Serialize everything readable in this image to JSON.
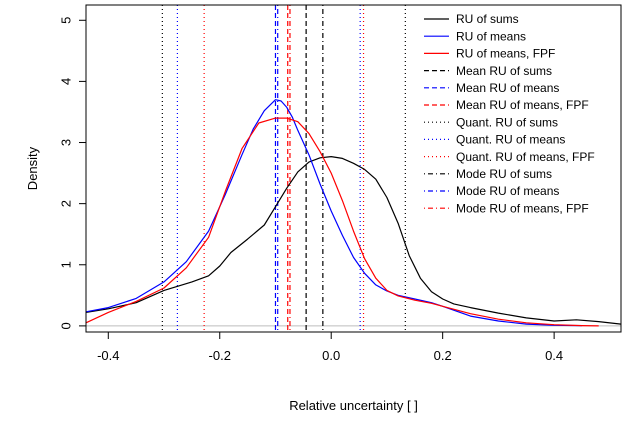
{
  "chart_data": {
    "type": "line",
    "title": "",
    "xlabel": "Relative uncertainty [ ]",
    "ylabel": "Density",
    "xlim": [
      -0.44,
      0.52
    ],
    "ylim": [
      -0.1,
      5.25
    ],
    "xticks": [
      "-0.4",
      "-0.2",
      "0.0",
      "0.2",
      "0.4"
    ],
    "xtick_values": [
      -0.4,
      -0.2,
      0.0,
      0.2,
      0.4
    ],
    "yticks": [
      "0",
      "1",
      "2",
      "3",
      "4",
      "5"
    ],
    "ytick_values": [
      0,
      1,
      2,
      3,
      4,
      5
    ],
    "grid": false,
    "legend_position": "top-right",
    "series": [
      {
        "name": "RU of sums",
        "color": "#000000",
        "x": [
          -0.44,
          -0.4,
          -0.35,
          -0.3,
          -0.25,
          -0.22,
          -0.2,
          -0.18,
          -0.15,
          -0.12,
          -0.1,
          -0.08,
          -0.06,
          -0.04,
          -0.02,
          0.0,
          0.02,
          0.04,
          0.06,
          0.08,
          0.1,
          0.12,
          0.14,
          0.16,
          0.18,
          0.2,
          0.22,
          0.25,
          0.3,
          0.35,
          0.4,
          0.44,
          0.48,
          0.52
        ],
        "y": [
          0.22,
          0.28,
          0.38,
          0.58,
          0.72,
          0.82,
          0.98,
          1.2,
          1.42,
          1.65,
          1.95,
          2.25,
          2.52,
          2.68,
          2.75,
          2.77,
          2.74,
          2.66,
          2.56,
          2.4,
          2.1,
          1.68,
          1.15,
          0.78,
          0.56,
          0.44,
          0.36,
          0.3,
          0.21,
          0.13,
          0.08,
          0.1,
          0.07,
          0.03
        ]
      },
      {
        "name": "RU of means",
        "color": "#0000ff",
        "x": [
          -0.44,
          -0.4,
          -0.35,
          -0.3,
          -0.26,
          -0.22,
          -0.19,
          -0.16,
          -0.14,
          -0.12,
          -0.1,
          -0.09,
          -0.08,
          -0.07,
          -0.06,
          -0.04,
          -0.02,
          0.0,
          0.02,
          0.04,
          0.06,
          0.08,
          0.1,
          0.12,
          0.15,
          0.18,
          0.2,
          0.25,
          0.3,
          0.35,
          0.4,
          0.45
        ],
        "y": [
          0.23,
          0.3,
          0.45,
          0.72,
          1.05,
          1.55,
          2.15,
          2.8,
          3.22,
          3.52,
          3.7,
          3.68,
          3.58,
          3.42,
          3.2,
          2.8,
          2.32,
          1.88,
          1.48,
          1.12,
          0.86,
          0.67,
          0.57,
          0.5,
          0.44,
          0.38,
          0.32,
          0.16,
          0.08,
          0.03,
          0.01,
          0.005
        ]
      },
      {
        "name": "RU of means, FPF",
        "color": "#ff0000",
        "x": [
          -0.44,
          -0.4,
          -0.35,
          -0.3,
          -0.26,
          -0.22,
          -0.19,
          -0.16,
          -0.13,
          -0.1,
          -0.08,
          -0.06,
          -0.04,
          -0.02,
          0.0,
          0.02,
          0.04,
          0.06,
          0.08,
          0.1,
          0.12,
          0.15,
          0.18,
          0.2,
          0.25,
          0.3,
          0.35,
          0.4,
          0.45,
          0.48
        ],
        "y": [
          0.05,
          0.22,
          0.4,
          0.62,
          0.95,
          1.45,
          2.2,
          2.9,
          3.32,
          3.4,
          3.4,
          3.34,
          3.15,
          2.85,
          2.5,
          2.05,
          1.55,
          1.1,
          0.78,
          0.58,
          0.49,
          0.42,
          0.37,
          0.32,
          0.2,
          0.11,
          0.05,
          0.02,
          0.005,
          0.0
        ]
      }
    ],
    "vertical_lines": [
      {
        "name": "Mean RU of sums",
        "x": -0.045,
        "color": "#000000",
        "style": "dashed"
      },
      {
        "name": "Mean RU of means",
        "x": -0.1,
        "color": "#0000ff",
        "style": "dashed"
      },
      {
        "name": "Mean RU of means, FPF",
        "x": -0.078,
        "color": "#ff0000",
        "style": "dashed"
      },
      {
        "name": "Quant. RU of sums",
        "x": -0.303,
        "color": "#000000",
        "style": "dotted"
      },
      {
        "name": "Quant. RU of sums",
        "x": 0.133,
        "color": "#000000",
        "style": "dotted"
      },
      {
        "name": "Quant. RU of means",
        "x": -0.276,
        "color": "#0000ff",
        "style": "dotted"
      },
      {
        "name": "Quant. RU of means",
        "x": 0.052,
        "color": "#0000ff",
        "style": "dotted"
      },
      {
        "name": "Quant. RU of means, FPF",
        "x": -0.228,
        "color": "#ff0000",
        "style": "dotted"
      },
      {
        "name": "Quant. RU of means, FPF",
        "x": 0.058,
        "color": "#ff0000",
        "style": "dotted"
      },
      {
        "name": "Mode RU of sums",
        "x": -0.015,
        "color": "#000000",
        "style": "dotdash"
      },
      {
        "name": "Mode RU of means",
        "x": -0.096,
        "color": "#0000ff",
        "style": "dotdash"
      },
      {
        "name": "Mode RU of means, FPF",
        "x": -0.074,
        "color": "#ff0000",
        "style": "dotdash"
      }
    ],
    "legend": [
      {
        "label": "RU of sums",
        "color": "#000000",
        "style": "solid"
      },
      {
        "label": "RU of means",
        "color": "#0000ff",
        "style": "solid"
      },
      {
        "label": "RU of means, FPF",
        "color": "#ff0000",
        "style": "solid"
      },
      {
        "label": "Mean RU of sums",
        "color": "#000000",
        "style": "dashed"
      },
      {
        "label": "Mean RU of means",
        "color": "#0000ff",
        "style": "dashed"
      },
      {
        "label": "Mean RU of means, FPF",
        "color": "#ff0000",
        "style": "dashed"
      },
      {
        "label": "Quant. RU of sums",
        "color": "#000000",
        "style": "dotted"
      },
      {
        "label": "Quant. RU of means",
        "color": "#0000ff",
        "style": "dotted"
      },
      {
        "label": "Quant. RU of means, FPF",
        "color": "#ff0000",
        "style": "dotted"
      },
      {
        "label": "Mode RU of sums",
        "color": "#000000",
        "style": "dotdash"
      },
      {
        "label": "Mode RU of means",
        "color": "#0000ff",
        "style": "dotdash"
      },
      {
        "label": "Mode RU of means, FPF",
        "color": "#ff0000",
        "style": "dotdash"
      }
    ],
    "baseline": {
      "y": 0,
      "color": "#bebebe"
    }
  }
}
